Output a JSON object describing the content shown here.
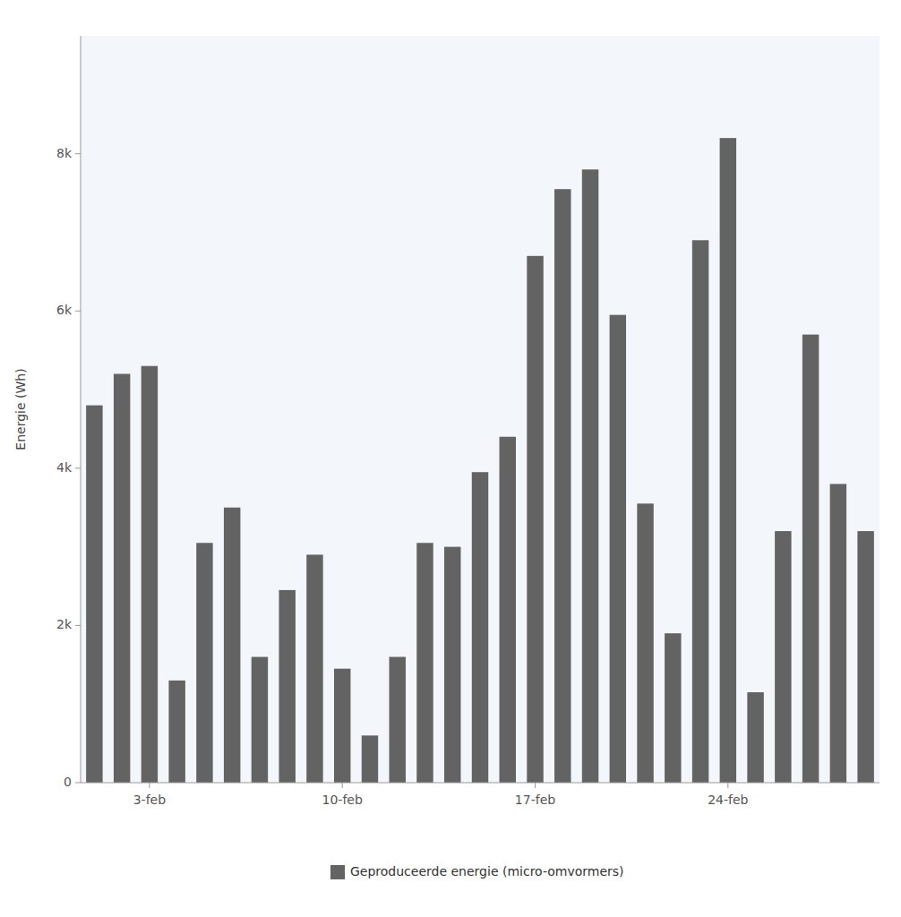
{
  "chart_data": {
    "type": "bar",
    "categories": [
      null,
      null,
      "3-feb",
      null,
      null,
      null,
      null,
      null,
      null,
      "10-feb",
      null,
      null,
      null,
      null,
      null,
      null,
      "17-feb",
      null,
      null,
      null,
      null,
      null,
      null,
      "24-feb",
      null,
      null,
      null,
      null,
      null
    ],
    "series": [
      {
        "name": "Geproduceerde energie (micro-omvormers)",
        "color": "#636363",
        "values": [
          4800,
          5200,
          5300,
          1300,
          3050,
          3500,
          1600,
          2450,
          2900,
          1450,
          600,
          1600,
          3050,
          3000,
          3950,
          4400,
          6700,
          7550,
          7800,
          5950,
          3550,
          1900,
          6900,
          8200,
          1150,
          3200,
          5700,
          3800,
          3200
        ]
      }
    ],
    "y_label": "Energie (Wh)",
    "ylim": [
      0,
      9500
    ],
    "yticks": [
      0,
      {
        "value": 2000,
        "label": "2k"
      },
      {
        "value": 4000,
        "label": "4k"
      },
      {
        "value": 6000,
        "label": "6k"
      },
      {
        "value": 8000,
        "label": "8k"
      }
    ],
    "grid": false,
    "legend": "bottom"
  }
}
